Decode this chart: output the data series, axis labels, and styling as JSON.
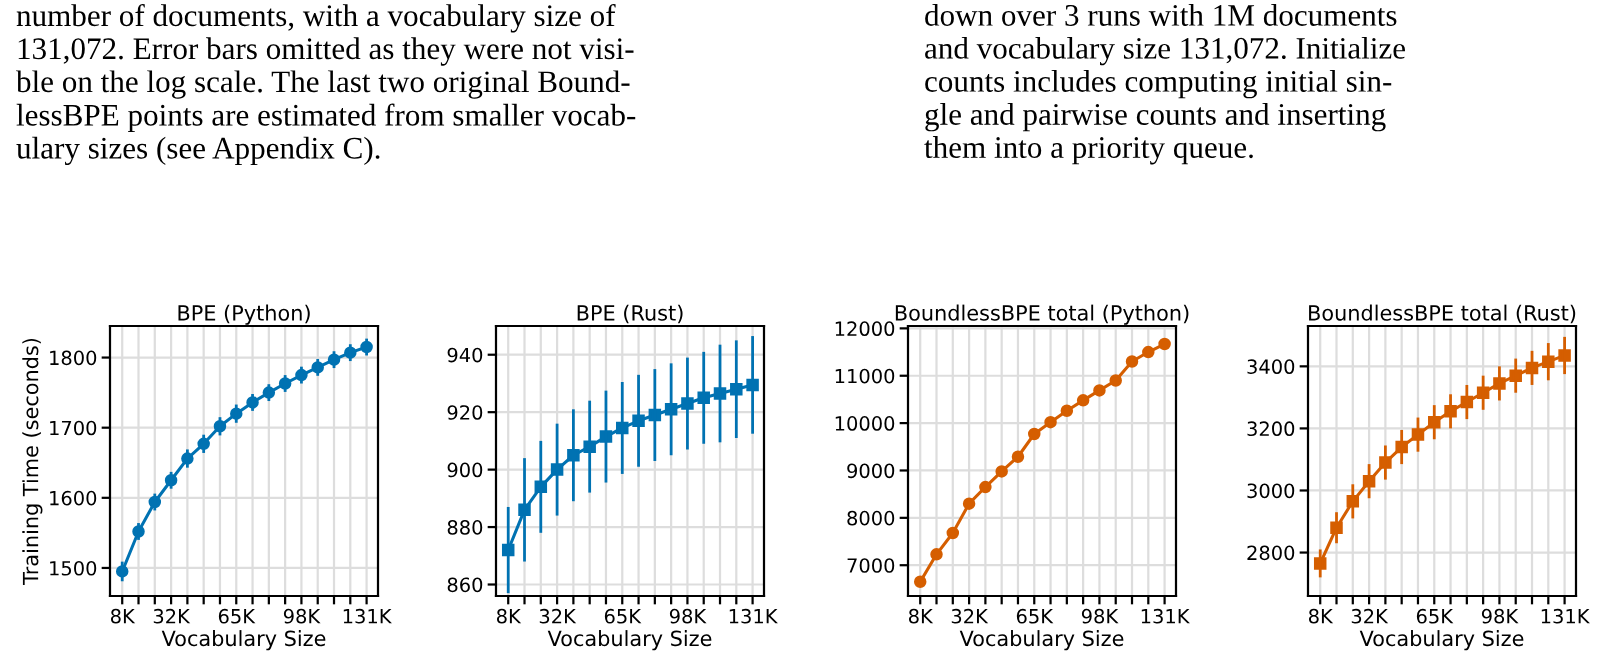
{
  "chart_data": [
    {
      "type": "line",
      "title": "BPE (Python)",
      "xlabel": "Vocabulary Size",
      "ylabel": "Training Time (seconds)",
      "annotations": [
        "number of documents, with a vocabulary size of\n131,072. Error bars omitted as they were not visi-\nble on the log scale. The last two original Bound-\nlessBPE points are estimated from smaller vocab-\nulary sizes (see Appendix C)."
      ],
      "categories": [
        "8K",
        null,
        null,
        "32K",
        null,
        null,
        null,
        "65K",
        null,
        null,
        null,
        "98K",
        null,
        null,
        null,
        "131K"
      ],
      "series": [
        {
          "color": "#0072b2",
          "marker": "circle",
          "values": [
            1495,
            1552,
            1594,
            1625,
            1656,
            1677,
            1702,
            1720,
            1736,
            1750,
            1763,
            1775,
            1786,
            1797,
            1807,
            1815
          ],
          "errors": [
            14,
            12,
            12,
            12,
            13,
            13,
            13,
            13,
            12,
            12,
            12,
            12,
            12,
            12,
            12,
            12
          ]
        }
      ],
      "ylim": [
        1460,
        1845
      ],
      "yticks": [
        1500,
        1600,
        1700,
        1800
      ],
      "grid": true
    },
    {
      "type": "line",
      "title": "BPE (Rust)",
      "xlabel": "Vocabulary Size",
      "categories": [
        "8K",
        null,
        null,
        "32K",
        null,
        null,
        null,
        "65K",
        null,
        null,
        null,
        "98K",
        null,
        null,
        null,
        "131K"
      ],
      "series": [
        {
          "color": "#0072b2",
          "marker": "square",
          "values": [
            872,
            886,
            894,
            900,
            905,
            908,
            911.5,
            914.5,
            917,
            919,
            921,
            923,
            925,
            926.5,
            928,
            929.5
          ],
          "errors": [
            15,
            18,
            16,
            16,
            16,
            16,
            16,
            16,
            16,
            16,
            16,
            16,
            16,
            17,
            17,
            17
          ]
        }
      ],
      "ylim": [
        856,
        950
      ],
      "yticks": [
        860,
        880,
        900,
        920,
        940
      ],
      "grid": true
    },
    {
      "type": "line",
      "title": "BoundlessBPE total (Python)",
      "xlabel": "Vocabulary Size",
      "annotations": [
        "down over 3 runs with 1M documents\nand vocabulary size 131,072. Initialize\ncounts includes computing initial sin-\ngle and pairwise counts and inserting\nthem into a priority queue."
      ],
      "categories": [
        "8K",
        null,
        null,
        "32K",
        null,
        null,
        null,
        "65K",
        null,
        null,
        null,
        "98K",
        null,
        null,
        null,
        "131K"
      ],
      "series": [
        {
          "color": "#d55e00",
          "marker": "circle",
          "values": [
            6650,
            7230,
            7680,
            8300,
            8650,
            8980,
            9290,
            9770,
            10020,
            10260,
            10480,
            10690,
            10900,
            11300,
            11500,
            11670
          ]
        }
      ],
      "ylim": [
        6350,
        12050
      ],
      "yticks": [
        7000,
        8000,
        9000,
        10000,
        11000,
        12000
      ],
      "grid": true
    },
    {
      "type": "line",
      "title": "BoundlessBPE total (Rust)",
      "xlabel": "Vocabulary Size",
      "categories": [
        "8K",
        null,
        null,
        "32K",
        null,
        null,
        null,
        "65K",
        null,
        null,
        null,
        "98K",
        null,
        null,
        null,
        "131K"
      ],
      "series": [
        {
          "color": "#d55e00",
          "marker": "square",
          "values": [
            2765,
            2880,
            2965,
            3030,
            3090,
            3140,
            3180,
            3220,
            3255,
            3285,
            3315,
            3345,
            3370,
            3395,
            3415,
            3435
          ],
          "errors": [
            45,
            50,
            55,
            55,
            55,
            55,
            55,
            55,
            55,
            55,
            55,
            55,
            55,
            55,
            60,
            60
          ]
        }
      ],
      "ylim": [
        2660,
        3530
      ],
      "yticks": [
        2800,
        3000,
        3200,
        3400
      ],
      "grid": true
    }
  ]
}
